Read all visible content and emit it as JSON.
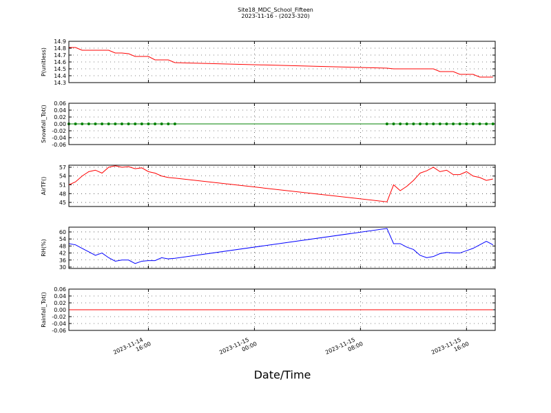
{
  "chart_data": [
    {
      "type": "line",
      "title": "Site18_MDC_School_Fifteen",
      "subtitle": "2023-11-16 - (2023-320)",
      "xlabel": "Date/Time",
      "x": [
        "2023-11-14 10:00",
        "2023-11-14 10:30",
        "2023-11-14 11:00",
        "2023-11-14 11:30",
        "2023-11-14 12:00",
        "2023-11-14 12:30",
        "2023-11-14 13:00",
        "2023-11-14 13:30",
        "2023-11-14 14:00",
        "2023-11-14 14:30",
        "2023-11-14 15:00",
        "2023-11-14 15:30",
        "2023-11-14 16:00",
        "2023-11-14 16:30",
        "2023-11-14 17:00",
        "2023-11-14 17:30",
        "2023-11-14 18:00",
        "2023-11-15 10:00",
        "2023-11-15 10:30",
        "2023-11-15 11:00",
        "2023-11-15 11:30",
        "2023-11-15 12:00",
        "2023-11-15 12:30",
        "2023-11-15 13:00",
        "2023-11-15 13:30",
        "2023-11-15 14:00",
        "2023-11-15 14:30",
        "2023-11-15 15:00",
        "2023-11-15 15:30",
        "2023-11-15 16:00",
        "2023-11-15 16:30",
        "2023-11-15 17:00",
        "2023-11-15 17:30",
        "2023-11-15 18:00"
      ],
      "xlim": [
        "2023-11-14 10:00",
        "2023-11-15 18:10"
      ],
      "xticks": [
        {
          "value": "2023-11-14 16:00",
          "label": [
            "2023-11-14",
            "16:00"
          ]
        },
        {
          "value": "2023-11-15 00:00",
          "label": [
            "2023-11-15",
            "00:00"
          ]
        },
        {
          "value": "2023-11-15 08:00",
          "label": [
            "2023-11-15",
            "08:00"
          ]
        },
        {
          "value": "2023-11-15 16:00",
          "label": [
            "2023-11-15",
            "16:00"
          ]
        }
      ],
      "ylabel": "P(unitless)",
      "color": "#ff0000",
      "grid": true,
      "ylim": [
        14.3,
        14.9
      ],
      "yticks": [
        14.3,
        14.4,
        14.5,
        14.6,
        14.7,
        14.8,
        14.9
      ],
      "values": [
        14.81,
        14.81,
        14.77,
        14.77,
        14.77,
        14.77,
        14.77,
        14.73,
        14.73,
        14.72,
        14.68,
        14.68,
        14.68,
        14.63,
        14.63,
        14.63,
        14.59,
        14.51,
        14.5,
        14.5,
        14.5,
        14.5,
        14.5,
        14.5,
        14.5,
        14.46,
        14.46,
        14.46,
        14.42,
        14.42,
        14.42,
        14.38,
        14.38,
        14.38
      ]
    },
    {
      "type": "line",
      "ylabel": "Snowfall_Tot()",
      "color": "#008000",
      "markers": true,
      "grid": true,
      "ylim": [
        -0.06,
        0.06
      ],
      "yticks": [
        -0.06,
        -0.04,
        -0.02,
        {
          "value": 0,
          "label": "0.00"
        },
        0.02,
        0.04,
        0.06
      ],
      "values": [
        0,
        0,
        0,
        0,
        0,
        0,
        0,
        0,
        0,
        0,
        0,
        0,
        0,
        0,
        0,
        0,
        0,
        0,
        0,
        0,
        0,
        0,
        0,
        0,
        0,
        0,
        0,
        0,
        0,
        0,
        0,
        0,
        0,
        0
      ]
    },
    {
      "type": "line",
      "ylabel": "AirTF()",
      "color": "#ff0000",
      "grid": true,
      "ylim": [
        43.6,
        57.7
      ],
      "yticks": [
        45,
        48,
        51,
        54,
        57
      ],
      "values": [
        51,
        52,
        54,
        55.5,
        56,
        55,
        57,
        57.5,
        57,
        57.2,
        56.5,
        56.8,
        55.5,
        55,
        54,
        53.5,
        53.3,
        45.2,
        51,
        49,
        50.5,
        52.5,
        55,
        55.8,
        57,
        55.5,
        56,
        54.5,
        54.5,
        55.5,
        54,
        53.5,
        52.5,
        53
      ]
    },
    {
      "type": "line",
      "ylabel": "RH(%)",
      "color": "#0000ff",
      "grid": true,
      "ylim": [
        28.8,
        64.1
      ],
      "yticks": [
        30,
        36,
        42,
        48,
        54,
        60
      ],
      "values": [
        50,
        49,
        46,
        43,
        40,
        42,
        38,
        35,
        36,
        36,
        33,
        35,
        35.5,
        35.5,
        38,
        37,
        37.5,
        63,
        50,
        50,
        47,
        45,
        40,
        38,
        39,
        41.5,
        42.5,
        42,
        42,
        44,
        46,
        49,
        52,
        49
      ]
    },
    {
      "type": "line",
      "ylabel": "Rainfall_Tot()",
      "color": "#ff0000",
      "grid": true,
      "ylim": [
        -0.06,
        0.06
      ],
      "yticks": [
        -0.06,
        -0.04,
        -0.02,
        {
          "value": 0,
          "label": "0.00"
        },
        0.02,
        0.04,
        0.06
      ],
      "values": [
        0,
        0,
        0,
        0,
        0,
        0,
        0,
        0,
        0,
        0,
        0,
        0,
        0,
        0,
        0,
        0,
        0,
        0,
        0,
        0,
        0,
        0,
        0,
        0,
        0,
        0,
        0,
        0,
        0,
        0,
        0,
        0,
        0,
        0
      ]
    }
  ]
}
